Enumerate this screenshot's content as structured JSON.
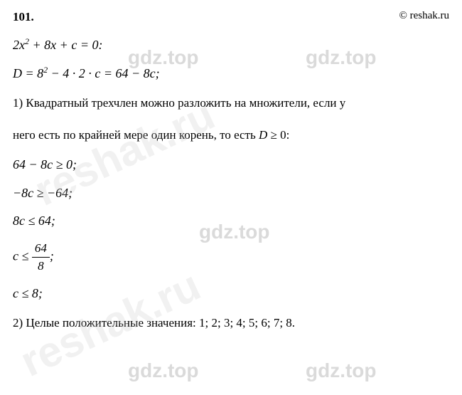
{
  "header": {
    "problem_number": "101.",
    "copyright": "© reshak.ru"
  },
  "watermarks": {
    "small": "gdz.top",
    "big": "reshak.ru"
  },
  "lines": {
    "eq1_a": "2",
    "eq1_b": "x",
    "eq1_c": "2",
    "eq1_d": " + 8",
    "eq1_e": "x",
    "eq1_f": " + ",
    "eq1_g": "c",
    "eq1_h": " = 0:",
    "eq2_a": "D",
    "eq2_b": " = 8",
    "eq2_c": "2",
    "eq2_d": " − 4 · 2 · ",
    "eq2_e": "c",
    "eq2_f": " = 64 − 8",
    "eq2_g": "c",
    "eq2_h": ";",
    "text1": "1) Квадратный трехчлен можно разложить на множители, если у",
    "text2_a": "него есть по крайней мере один корень, то есть ",
    "text2_b": "D",
    "text2_c": " ≥ 0:",
    "ineq1_a": "64 − 8",
    "ineq1_b": "c",
    "ineq1_c": " ≥ 0;",
    "ineq2_a": "−8",
    "ineq2_b": "c",
    "ineq2_c": " ≥ −64;",
    "ineq3_a": "8",
    "ineq3_b": "c",
    "ineq3_c": " ≤ 64;",
    "ineq4_a": "c",
    "ineq4_b": " ≤ ",
    "frac_num": "64",
    "frac_den": "8",
    "ineq4_c": ";",
    "ineq5_a": "c",
    "ineq5_b": " ≤ 8;",
    "text3": "2) Целые положительные значения:  1;  2;  3;  4;  5;  6;  7;  8."
  }
}
